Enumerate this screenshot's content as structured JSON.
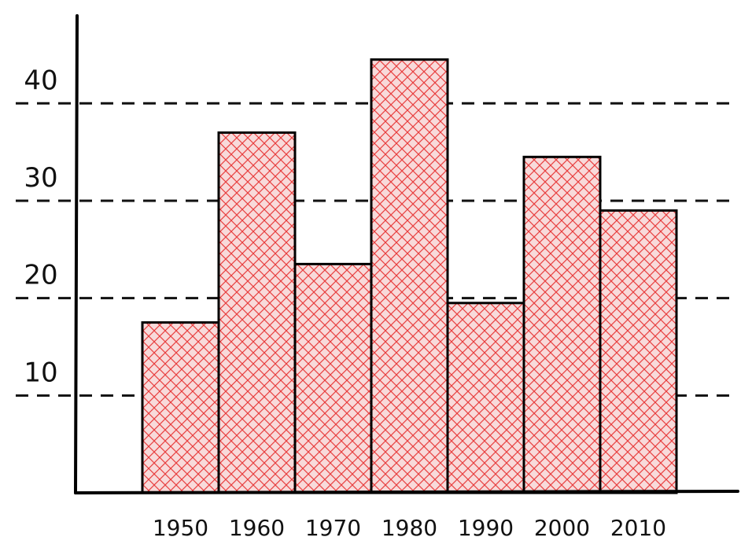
{
  "chart_data": {
    "type": "bar",
    "title": "",
    "xlabel": "",
    "ylabel": "",
    "categories": [
      "1950",
      "1960",
      "1970",
      "1980",
      "1990",
      "2000",
      "2010"
    ],
    "values": [
      17.5,
      37.0,
      23.5,
      44.5,
      19.5,
      34.5,
      29.0
    ],
    "ylim": [
      0,
      49
    ],
    "yticks": [
      10,
      20,
      30,
      40
    ],
    "ytick_labels": [
      "10",
      "20",
      "30",
      "40"
    ],
    "grid": true,
    "grid_style": "dashed",
    "bar_fill": "#f8dada",
    "hatch_color": "#e83f3f",
    "bar_outline": "#000000",
    "axis_color": "#000000"
  }
}
